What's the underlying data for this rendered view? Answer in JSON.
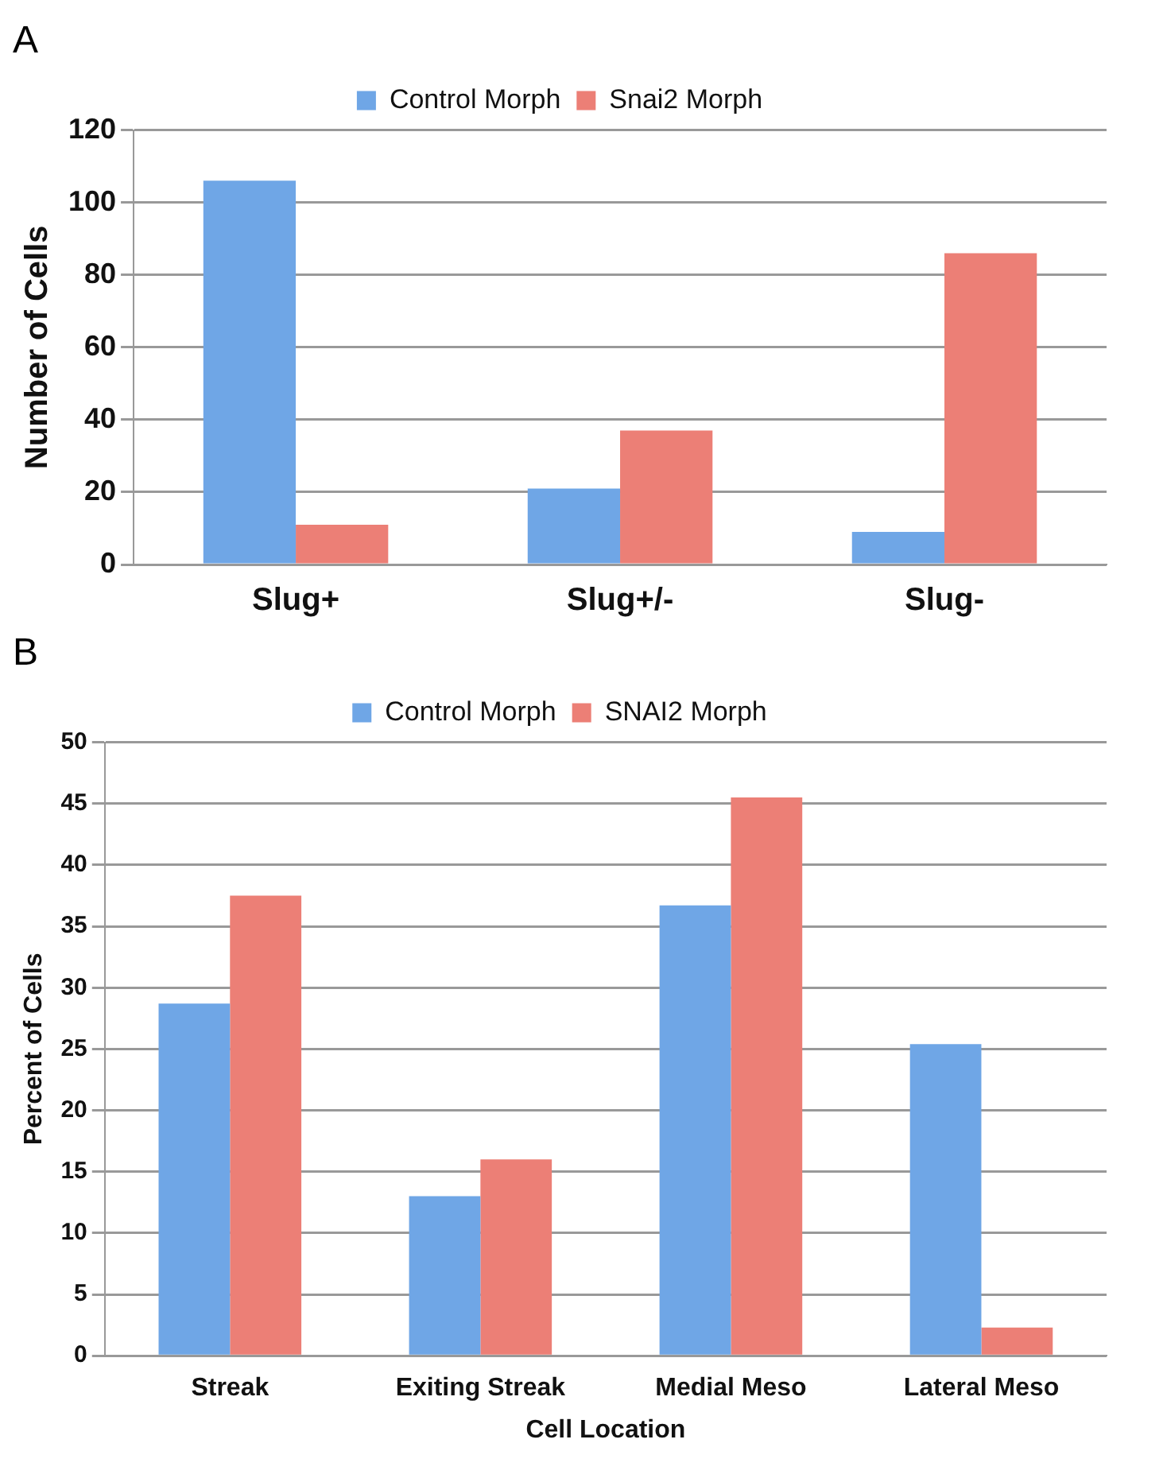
{
  "chart_data": [
    {
      "type": "bar",
      "title": "A",
      "categories": [
        "Slug+",
        "Slug+/-",
        "Slug-"
      ],
      "series": [
        {
          "name": "Control Morph",
          "color": "#6fa6e6",
          "values": [
            106,
            21,
            9
          ]
        },
        {
          "name": "Snai2 Morph",
          "color": "#ec7f76",
          "values": [
            11,
            37,
            86
          ]
        }
      ],
      "ylim": [
        0,
        120
      ],
      "yticks": [
        0,
        20,
        40,
        60,
        80,
        100,
        120
      ],
      "ylabel": "Number of Cells",
      "grid": "y",
      "legend": "top"
    },
    {
      "type": "bar",
      "title": "B",
      "categories": [
        "Streak",
        "Exiting Streak",
        "Medial Meso",
        "Lateral Meso"
      ],
      "series": [
        {
          "name": "Control Morph",
          "color": "#6fa6e6",
          "values": [
            28.7,
            13,
            36.7,
            25.4
          ]
        },
        {
          "name": "SNAI2 Morph",
          "color": "#ec7f76",
          "values": [
            37.5,
            16,
            45.5,
            2.3
          ]
        }
      ],
      "ylim": [
        0,
        50
      ],
      "yticks": [
        0,
        5,
        10,
        15,
        20,
        25,
        30,
        35,
        40,
        45,
        50
      ],
      "ylabel": "Percent of Cells",
      "xlabel": "Cell Location",
      "grid": "y",
      "legend": "top"
    }
  ]
}
